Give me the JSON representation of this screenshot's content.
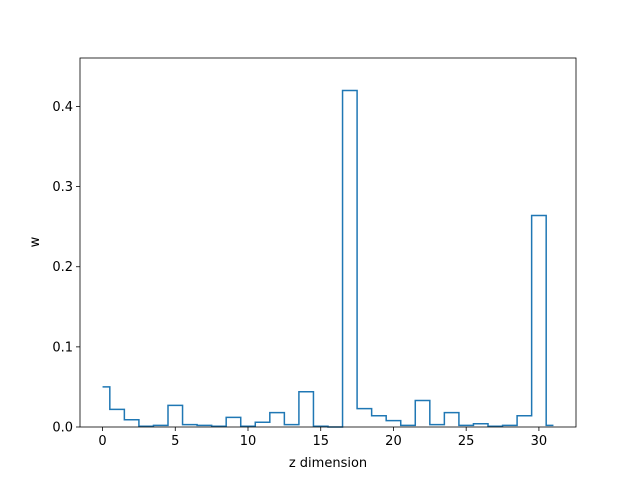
{
  "chart_data": {
    "type": "step",
    "x": [
      0,
      1,
      2,
      3,
      4,
      5,
      6,
      7,
      8,
      9,
      10,
      11,
      12,
      13,
      14,
      15,
      16,
      17,
      18,
      19,
      20,
      21,
      22,
      23,
      24,
      25,
      26,
      27,
      28,
      29,
      30,
      31
    ],
    "values": [
      0.05,
      0.022,
      0.009,
      0.001,
      0.002,
      0.027,
      0.003,
      0.002,
      0.001,
      0.012,
      0.001,
      0.006,
      0.018,
      0.003,
      0.044,
      0.001,
      0.0,
      0.42,
      0.023,
      0.014,
      0.008,
      0.002,
      0.033,
      0.003,
      0.018,
      0.002,
      0.004,
      0.001,
      0.002,
      0.014,
      0.264,
      0.002
    ],
    "title": "",
    "xlabel": "z dimension",
    "ylabel": "w",
    "xlim": [
      -1.55,
      32.55
    ],
    "ylim": [
      0,
      0.4605
    ],
    "xticks": [
      0,
      5,
      10,
      15,
      20,
      25,
      30
    ],
    "xtick_labels": [
      "0",
      "5",
      "10",
      "15",
      "20",
      "25",
      "30"
    ],
    "yticks": [
      0.0,
      0.1,
      0.2,
      0.3,
      0.4
    ],
    "ytick_labels": [
      "0.0",
      "0.1",
      "0.2",
      "0.3",
      "0.4"
    ],
    "grid": false,
    "line_color": "#1f77b4"
  }
}
